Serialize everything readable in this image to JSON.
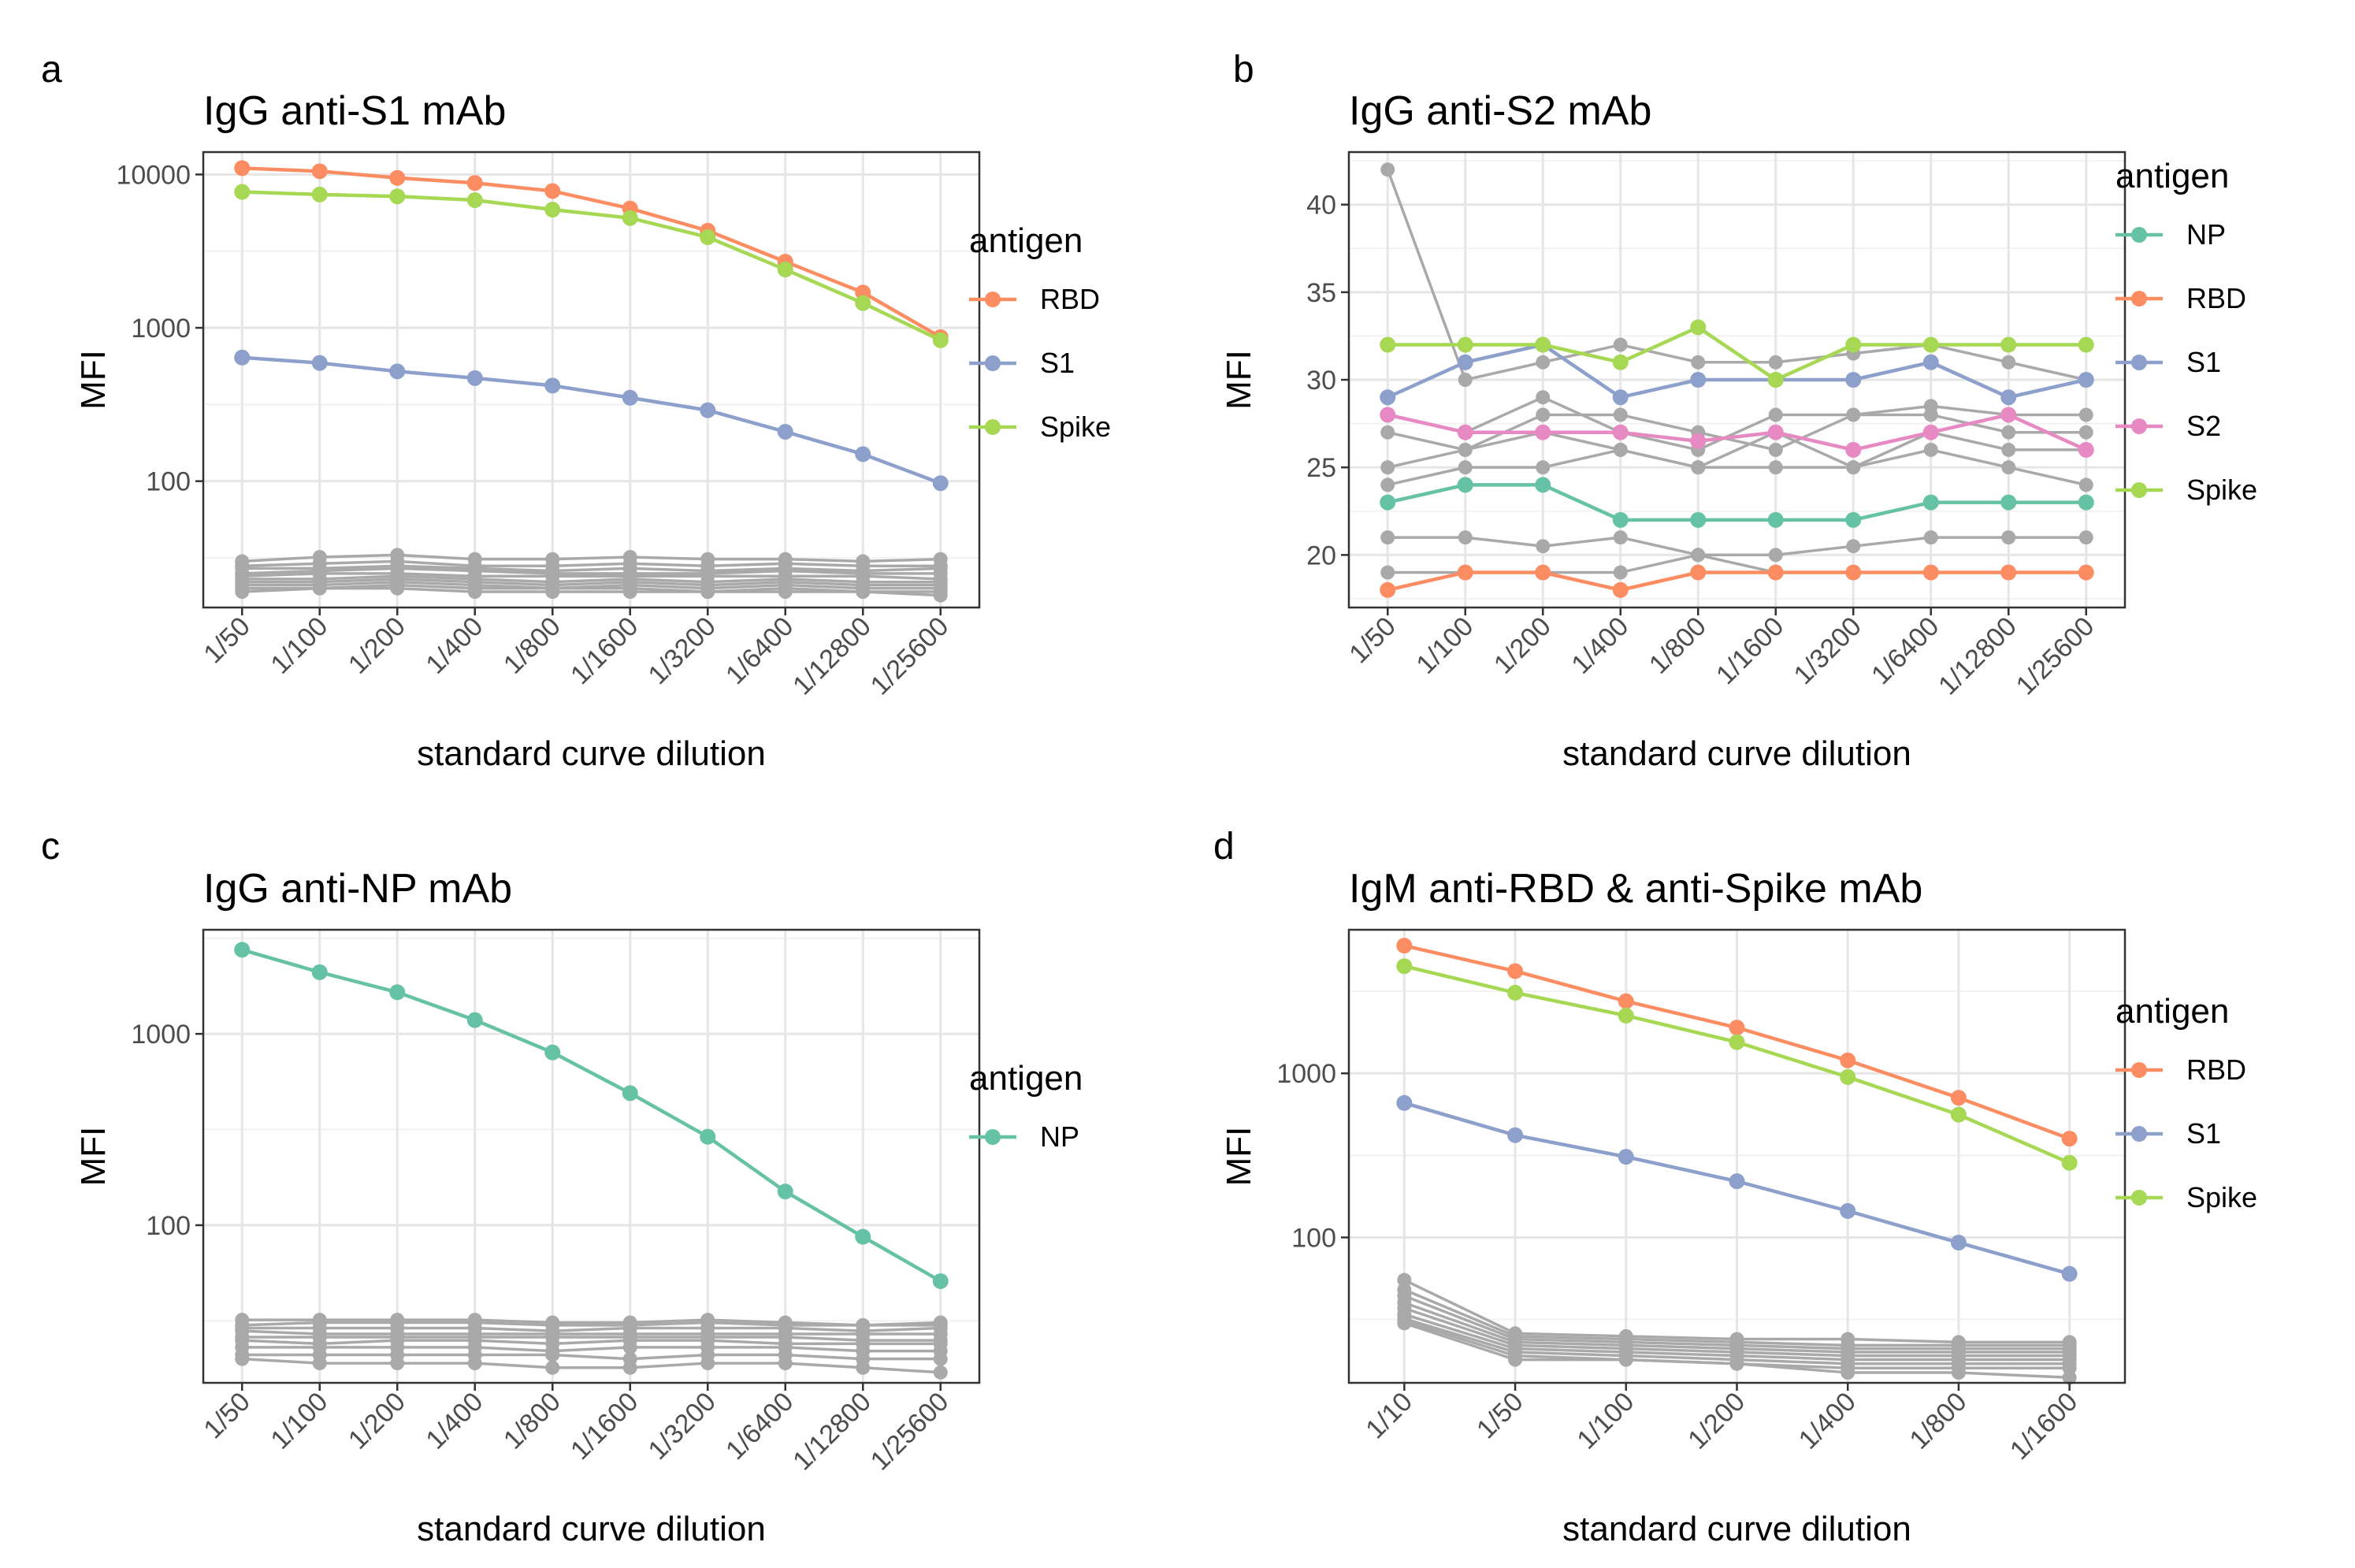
{
  "colors": {
    "NP": "#66c2a5",
    "RBD": "#fc8d62",
    "S1": "#8da0cb",
    "S2": "#e78ac3",
    "Spike": "#a6d854",
    "background": "#a9a9a9"
  },
  "chart_data": [
    {
      "panel": "a",
      "type": "line",
      "title": "IgG anti-S1 mAb",
      "xlabel": "standard curve dilution",
      "ylabel": "MFI",
      "yscale": "log",
      "ylim": [
        15,
        14000
      ],
      "yticks": [
        100,
        1000,
        10000
      ],
      "ytick_labels": [
        "100",
        "1000",
        "10000"
      ],
      "categories": [
        "1/50",
        "1/100",
        "1/200",
        "1/400",
        "1/800",
        "1/1600",
        "1/3200",
        "1/6400",
        "1/12800",
        "1/25600"
      ],
      "legend_title": "antigen",
      "legend": [
        "RBD",
        "S1",
        "Spike"
      ],
      "series": [
        {
          "name": "RBD",
          "values": [
            11000,
            10500,
            9500,
            8800,
            7800,
            6000,
            4300,
            2700,
            1700,
            870
          ]
        },
        {
          "name": "S1",
          "values": [
            640,
            590,
            520,
            470,
            420,
            350,
            290,
            210,
            150,
            97
          ]
        },
        {
          "name": "Spike",
          "values": [
            7700,
            7400,
            7200,
            6800,
            5900,
            5200,
            3900,
            2400,
            1450,
            830
          ]
        }
      ],
      "background_series": [
        [
          30,
          32,
          33,
          31,
          31,
          32,
          31,
          31,
          30,
          31
        ],
        [
          28,
          29,
          30,
          28,
          28,
          29,
          28,
          29,
          28,
          28
        ],
        [
          27,
          27,
          28,
          27,
          26,
          27,
          26,
          27,
          26,
          27
        ],
        [
          25,
          26,
          27,
          26,
          25,
          25,
          25,
          26,
          25,
          25
        ],
        [
          24,
          25,
          25,
          24,
          24,
          24,
          24,
          24,
          24,
          23
        ],
        [
          23,
          23,
          24,
          23,
          22,
          23,
          22,
          23,
          22,
          22
        ],
        [
          22,
          22,
          23,
          22,
          21,
          22,
          21,
          22,
          21,
          21
        ],
        [
          21,
          21,
          22,
          21,
          20,
          21,
          20,
          21,
          20,
          20
        ],
        [
          20,
          20,
          21,
          20,
          20,
          20,
          19,
          20,
          19,
          19
        ],
        [
          19,
          20,
          20,
          19,
          19,
          19,
          19,
          19,
          19,
          18
        ]
      ]
    },
    {
      "panel": "b",
      "type": "line",
      "title": "IgG anti-S2 mAb",
      "xlabel": "standard curve dilution",
      "ylabel": "MFI",
      "yscale": "linear",
      "ylim": [
        17,
        43
      ],
      "yticks": [
        20,
        25,
        30,
        35,
        40
      ],
      "ytick_labels": [
        "20",
        "25",
        "30",
        "35",
        "40"
      ],
      "categories": [
        "1/50",
        "1/100",
        "1/200",
        "1/400",
        "1/800",
        "1/1600",
        "1/3200",
        "1/6400",
        "1/12800",
        "1/25600"
      ],
      "legend_title": "antigen",
      "legend": [
        "NP",
        "RBD",
        "S1",
        "S2",
        "Spike"
      ],
      "series": [
        {
          "name": "NP",
          "values": [
            23,
            24,
            24,
            22,
            22,
            22,
            22,
            23,
            23,
            23
          ]
        },
        {
          "name": "RBD",
          "values": [
            18,
            19,
            19,
            18,
            19,
            19,
            19,
            19,
            19,
            19
          ]
        },
        {
          "name": "S1",
          "values": [
            29,
            31,
            32,
            29,
            30,
            30,
            30,
            31,
            29,
            30
          ]
        },
        {
          "name": "S2",
          "values": [
            28,
            27,
            27,
            27,
            26.5,
            27,
            26,
            27,
            28,
            26
          ]
        },
        {
          "name": "Spike",
          "values": [
            32,
            32,
            32,
            31,
            33,
            30,
            32,
            32,
            32,
            32
          ]
        }
      ],
      "background_series": [
        [
          42,
          30,
          31,
          32,
          31,
          31,
          31.5,
          32,
          31,
          30
        ],
        [
          28,
          27,
          29,
          27,
          26,
          28,
          28,
          28.5,
          28,
          28
        ],
        [
          27,
          26,
          28,
          28,
          27,
          26,
          28,
          28,
          27,
          27
        ],
        [
          25,
          26,
          27,
          26,
          25,
          27,
          25,
          27,
          26,
          26
        ],
        [
          24,
          25,
          25,
          26,
          25,
          25,
          25,
          26,
          25,
          24
        ],
        [
          21,
          21,
          20.5,
          21,
          20,
          20,
          20.5,
          21,
          21,
          21
        ],
        [
          19,
          19,
          19,
          19,
          20,
          19,
          19,
          19,
          19,
          19
        ]
      ]
    },
    {
      "panel": "c",
      "type": "line",
      "title": "IgG anti-NP mAb",
      "xlabel": "standard curve dilution",
      "ylabel": "MFI",
      "yscale": "log",
      "ylim": [
        15,
        3500
      ],
      "yticks": [
        100,
        1000
      ],
      "ytick_labels": [
        "100",
        "1000"
      ],
      "categories": [
        "1/50",
        "1/100",
        "1/200",
        "1/400",
        "1/800",
        "1/1600",
        "1/3200",
        "1/6400",
        "1/12800",
        "1/25600"
      ],
      "legend_title": "antigen",
      "legend": [
        "NP"
      ],
      "series": [
        {
          "name": "NP",
          "values": [
            2750,
            2100,
            1650,
            1180,
            800,
            490,
            290,
            150,
            87,
            51
          ]
        }
      ],
      "background_series": [
        [
          32,
          32,
          32,
          32,
          31,
          31,
          32,
          31,
          30,
          31
        ],
        [
          30,
          31,
          31,
          31,
          30,
          30,
          31,
          30,
          30,
          30
        ],
        [
          29,
          29,
          29,
          29,
          28,
          29,
          29,
          29,
          28,
          29
        ],
        [
          28,
          27,
          27,
          27,
          27,
          27,
          27,
          27,
          27,
          27
        ],
        [
          26,
          26,
          26,
          26,
          26,
          26,
          26,
          26,
          25,
          25
        ],
        [
          25,
          24,
          25,
          25,
          24,
          25,
          25,
          24,
          24,
          24
        ],
        [
          23,
          23,
          23,
          23,
          22,
          23,
          23,
          23,
          22,
          22
        ],
        [
          21,
          21,
          21,
          21,
          21,
          20,
          21,
          21,
          20,
          20
        ],
        [
          20,
          19,
          19,
          19,
          18,
          18,
          19,
          19,
          18,
          17
        ]
      ]
    },
    {
      "panel": "d",
      "type": "line",
      "title": "IgM anti-RBD & anti-Spike mAb",
      "xlabel": "standard curve dilution",
      "ylabel": "MFI",
      "yscale": "log",
      "ylim": [
        13,
        7500
      ],
      "yticks": [
        100,
        1000
      ],
      "ytick_labels": [
        "100",
        "1000"
      ],
      "categories": [
        "1/10",
        "1/50",
        "1/100",
        "1/200",
        "1/400",
        "1/800",
        "1/1600"
      ],
      "legend_title": "antigen",
      "legend": [
        "RBD",
        "S1",
        "Spike"
      ],
      "series": [
        {
          "name": "RBD",
          "values": [
            6000,
            4200,
            2750,
            1900,
            1200,
            710,
            400
          ]
        },
        {
          "name": "S1",
          "values": [
            660,
            420,
            310,
            220,
            145,
            93,
            60
          ]
        },
        {
          "name": "Spike",
          "values": [
            4500,
            3100,
            2250,
            1550,
            950,
            560,
            285
          ]
        }
      ],
      "background_series": [
        [
          55,
          26,
          25,
          24,
          24,
          23,
          23
        ],
        [
          48,
          25,
          24,
          23,
          22,
          22,
          22
        ],
        [
          44,
          24,
          23,
          22,
          21,
          21,
          21
        ],
        [
          40,
          23,
          22,
          21,
          20,
          20,
          20
        ],
        [
          37,
          22,
          21,
          20,
          19,
          19,
          19
        ],
        [
          34,
          21,
          20,
          19,
          18,
          18,
          18
        ],
        [
          32,
          20,
          19,
          18,
          17,
          17,
          17
        ],
        [
          31,
          19,
          18,
          17,
          16,
          16,
          16
        ],
        [
          30,
          18,
          18,
          17,
          15,
          15,
          14
        ]
      ]
    }
  ]
}
